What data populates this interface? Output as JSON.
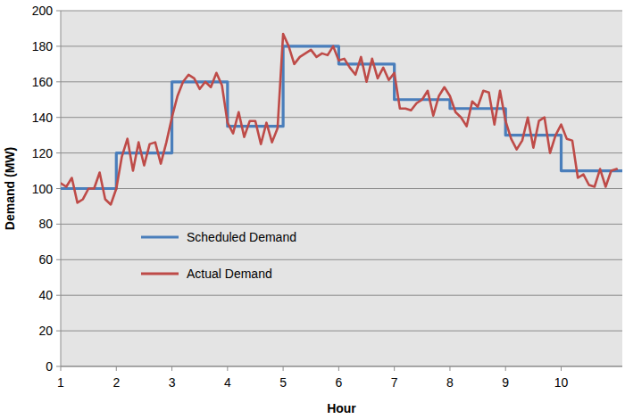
{
  "chart_data": {
    "type": "line",
    "x_label": "Hour",
    "y_label": "Demand (MW)",
    "xlim": [
      1,
      11.1
    ],
    "ylim": [
      0,
      200
    ],
    "xticks": [
      1,
      2,
      3,
      4,
      5,
      6,
      7,
      8,
      9,
      10
    ],
    "yticks": [
      0,
      20,
      40,
      60,
      80,
      100,
      120,
      140,
      160,
      180,
      200
    ],
    "grid": true,
    "legend": "lower left",
    "series": [
      {
        "name": "Scheduled Demand",
        "color": "#4a7ebb",
        "x": [
          1,
          2,
          2,
          3,
          3,
          4,
          4,
          5,
          5,
          6,
          6,
          7,
          7,
          8,
          8,
          9,
          9,
          10,
          10,
          11.1
        ],
        "values": [
          100,
          100,
          120,
          120,
          160,
          160,
          135,
          135,
          180,
          180,
          170,
          170,
          150,
          150,
          145,
          145,
          130,
          130,
          110,
          110
        ]
      },
      {
        "name": "Actual Demand",
        "color": "#be4b48",
        "x": [
          1,
          1.1,
          1.2,
          1.3,
          1.4,
          1.5,
          1.6,
          1.7,
          1.8,
          1.9,
          2,
          2.1,
          2.2,
          2.3,
          2.4,
          2.5,
          2.6,
          2.7,
          2.8,
          2.9,
          3,
          3.1,
          3.2,
          3.3,
          3.4,
          3.5,
          3.6,
          3.7,
          3.8,
          3.9,
          4,
          4.1,
          4.2,
          4.3,
          4.4,
          4.5,
          4.6,
          4.7,
          4.8,
          4.9,
          5,
          5.1,
          5.2,
          5.3,
          5.4,
          5.5,
          5.6,
          5.7,
          5.8,
          5.9,
          6,
          6.1,
          6.2,
          6.3,
          6.4,
          6.5,
          6.6,
          6.7,
          6.8,
          6.9,
          7,
          7.1,
          7.2,
          7.3,
          7.4,
          7.5,
          7.6,
          7.7,
          7.8,
          7.9,
          8,
          8.1,
          8.2,
          8.3,
          8.4,
          8.5,
          8.6,
          8.7,
          8.8,
          8.9,
          9,
          9.1,
          9.2,
          9.3,
          9.4,
          9.5,
          9.6,
          9.7,
          9.8,
          9.9,
          10,
          10.1,
          10.2,
          10.3,
          10.4,
          10.5,
          10.6,
          10.7,
          10.8,
          10.9,
          11
        ],
        "values": [
          103,
          101,
          106,
          92,
          94,
          100,
          100,
          109,
          94,
          91,
          100,
          118,
          128,
          110,
          126,
          113,
          125,
          126,
          114,
          126,
          140,
          152,
          160,
          164,
          162,
          156,
          160,
          157,
          165,
          158,
          137,
          131,
          143,
          129,
          138,
          138,
          125,
          137,
          126,
          134,
          187,
          180,
          170,
          174,
          176,
          178,
          174,
          176,
          175,
          180,
          172,
          173,
          168,
          164,
          174,
          160,
          173,
          162,
          168,
          161,
          165,
          145,
          145,
          144,
          148,
          150,
          155,
          141,
          152,
          157,
          152,
          143,
          140,
          135,
          149,
          146,
          155,
          154,
          136,
          155,
          138,
          128,
          122,
          127,
          140,
          123,
          138,
          140,
          120,
          130,
          136,
          128,
          127,
          106,
          108,
          102,
          101,
          111,
          101,
          110,
          111
        ]
      }
    ]
  }
}
